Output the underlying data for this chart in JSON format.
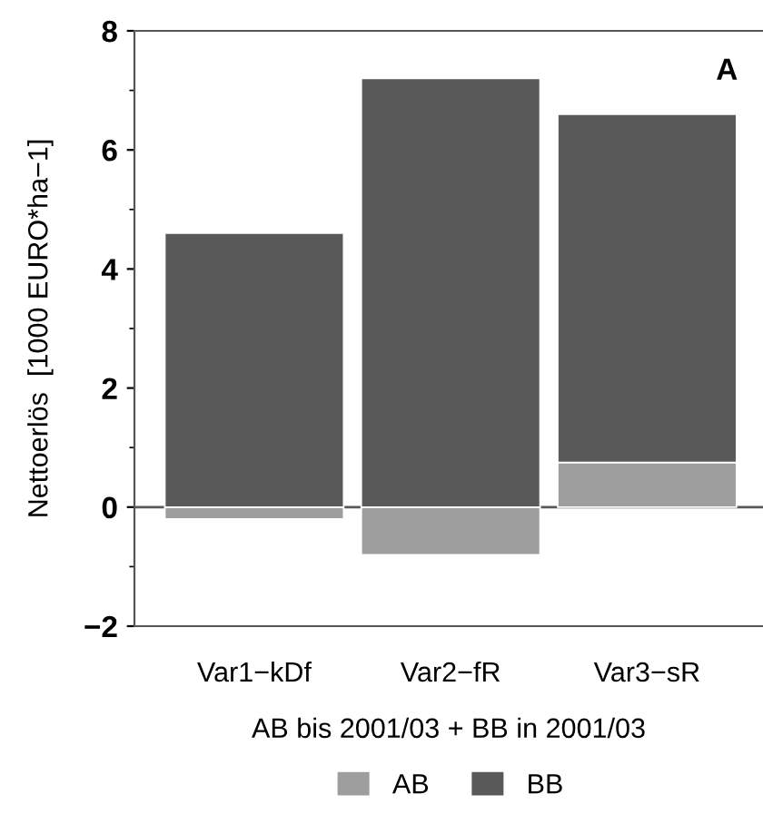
{
  "chart_data": {
    "type": "bar",
    "stacked": true,
    "xlabel": "AB bis 2001/03 + BB in 2001/03",
    "ylabel": "Nettoerlös  [1000 EURO*ha−1]",
    "categories": [
      "Var1−kDf",
      "Var2−fR",
      "Var3−sR"
    ],
    "series": [
      {
        "name": "AB",
        "color": "#9e9e9e",
        "values": [
          -0.2,
          -0.8,
          0.75
        ]
      },
      {
        "name": "BB",
        "color": "#595959",
        "values": [
          4.6,
          7.2,
          5.85
        ]
      }
    ],
    "ylim": [
      -2,
      8
    ],
    "yticks": [
      {
        "value": -2,
        "label": "−2"
      },
      0,
      2,
      4,
      6,
      8
    ],
    "ref_lines": [
      {
        "axis": "y",
        "value": 0,
        "color": "#595959"
      }
    ],
    "annotations": [
      "A"
    ],
    "legend": "bottom",
    "grid": false
  }
}
